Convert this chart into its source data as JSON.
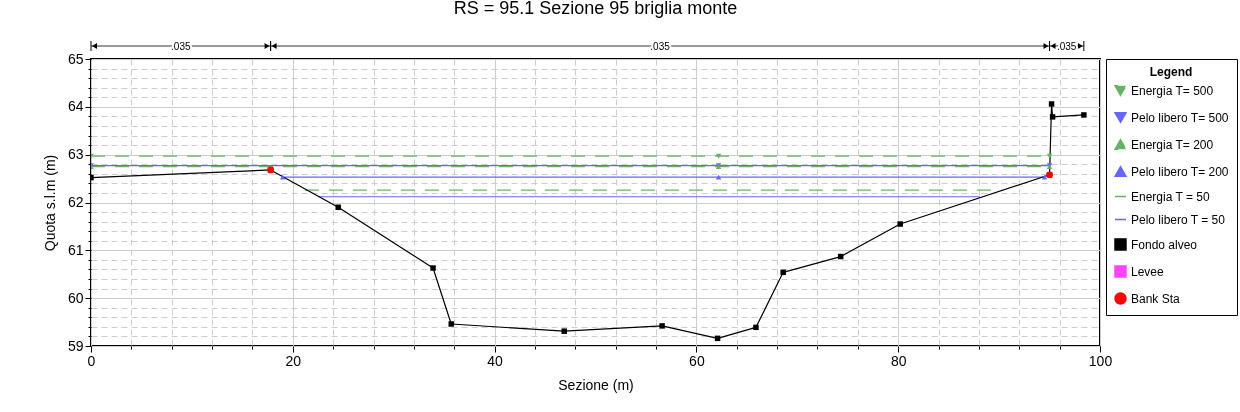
{
  "chart_data": {
    "type": "line",
    "title": "RS = 95.1    Sezione 95 briglia monte",
    "xlabel": "Sezione (m)",
    "ylabel": "Quota s.l.m (m)",
    "legend_title": "Legend",
    "legend": "right",
    "grid": true,
    "xlim": [
      0,
      100
    ],
    "ylim": [
      59,
      65
    ],
    "xticks": [
      0,
      {
        "value": 4,
        "label": null
      },
      {
        "value": 8,
        "label": null
      },
      {
        "value": 12,
        "label": null
      },
      {
        "value": 16,
        "label": null
      },
      20,
      {
        "value": 24,
        "label": null
      },
      {
        "value": 28,
        "label": null
      },
      {
        "value": 32,
        "label": null
      },
      {
        "value": 36,
        "label": null
      },
      40,
      {
        "value": 44,
        "label": null
      },
      {
        "value": 48,
        "label": null
      },
      {
        "value": 52,
        "label": null
      },
      {
        "value": 56,
        "label": null
      },
      60,
      {
        "value": 64,
        "label": null
      },
      {
        "value": 68,
        "label": null
      },
      {
        "value": 72,
        "label": null
      },
      {
        "value": 76,
        "label": null
      },
      80,
      {
        "value": 84,
        "label": null
      },
      {
        "value": 88,
        "label": null
      },
      {
        "value": 92,
        "label": null
      },
      {
        "value": 96,
        "label": null
      },
      100
    ],
    "yticks": [
      59,
      {
        "value": 59.2,
        "label": null
      },
      {
        "value": 59.4,
        "label": null
      },
      {
        "value": 59.6,
        "label": null
      },
      {
        "value": 59.8,
        "label": null
      },
      60,
      {
        "value": 60.2,
        "label": null
      },
      {
        "value": 60.4,
        "label": null
      },
      {
        "value": 60.6,
        "label": null
      },
      {
        "value": 60.8,
        "label": null
      },
      61,
      {
        "value": 61.2,
        "label": null
      },
      {
        "value": 61.4,
        "label": null
      },
      {
        "value": 61.6,
        "label": null
      },
      {
        "value": 61.8,
        "label": null
      },
      62,
      {
        "value": 62.2,
        "label": null
      },
      {
        "value": 62.4,
        "label": null
      },
      {
        "value": 62.6,
        "label": null
      },
      {
        "value": 62.8,
        "label": null
      },
      63,
      {
        "value": 63.2,
        "label": null
      },
      {
        "value": 63.4,
        "label": null
      },
      {
        "value": 63.6,
        "label": null
      },
      {
        "value": 63.8,
        "label": null
      },
      64,
      {
        "value": 64.2,
        "label": null
      },
      {
        "value": 64.4,
        "label": null
      },
      {
        "value": 64.6,
        "label": null
      },
      {
        "value": 64.8,
        "label": null
      },
      65
    ],
    "annotations": [
      ".035",
      ".035",
      ".035"
    ],
    "series": [
      {
        "name": "Energia T= 500",
        "color": "#66b266",
        "line_style": "dashed",
        "marker": "triangle-down",
        "x": [
          0,
          62.2,
          95.0
        ],
        "values": [
          62.97,
          62.97,
          62.97
        ]
      },
      {
        "name": "Pelo libero T= 500",
        "color": "#6666ff",
        "line_style": "solid",
        "marker": "triangle-down",
        "x": [
          0,
          62.2,
          95.0
        ],
        "values": [
          62.77,
          62.77,
          62.77
        ]
      },
      {
        "name": "Energia T= 200",
        "color": "#66b266",
        "line_style": "dashed",
        "marker": "triangle",
        "x": [
          0,
          62.2,
          95.0
        ],
        "values": [
          62.75,
          62.75,
          62.75
        ]
      },
      {
        "name": "Pelo libero T= 200",
        "color": "#6666ff",
        "line_style": "solid",
        "marker": "triangle",
        "x": [
          19.0,
          62.2,
          94.5
        ],
        "values": [
          62.53,
          62.53,
          62.53
        ]
      },
      {
        "name": "Energia T = 50",
        "color": "#66b266",
        "line_style": "dashed",
        "marker": "none",
        "x": [
          21.2,
          90.3
        ],
        "values": [
          62.26,
          62.26
        ]
      },
      {
        "name": "Pelo libero T = 50",
        "color": "#6666ff",
        "line_style": "solid",
        "marker": "none",
        "x": [
          22.5,
          88.1
        ],
        "values": [
          62.12,
          62.12
        ]
      },
      {
        "name": "Fondo alveo",
        "color": "#000000",
        "line_style": "solid",
        "marker": "square",
        "x": [
          0,
          17.8,
          24.5,
          33.9,
          35.7,
          46.9,
          56.6,
          62.1,
          65.9,
          68.6,
          74.3,
          80.2,
          95.0,
          95.2,
          95.3,
          98.4
        ],
        "values": [
          62.52,
          62.68,
          61.9,
          60.63,
          59.46,
          59.31,
          59.42,
          59.16,
          59.39,
          60.54,
          60.87,
          61.55,
          62.58,
          64.06,
          63.79,
          63.83
        ]
      },
      {
        "name": "Levee",
        "color": "#ff44ff",
        "line_style": "solid",
        "marker": "square"
      },
      {
        "name": "Bank Sta",
        "type": "scatter",
        "color": "#ff0000",
        "marker": "circle",
        "x": [
          17.8,
          95.0
        ],
        "values": [
          62.68,
          62.58
        ]
      }
    ]
  }
}
